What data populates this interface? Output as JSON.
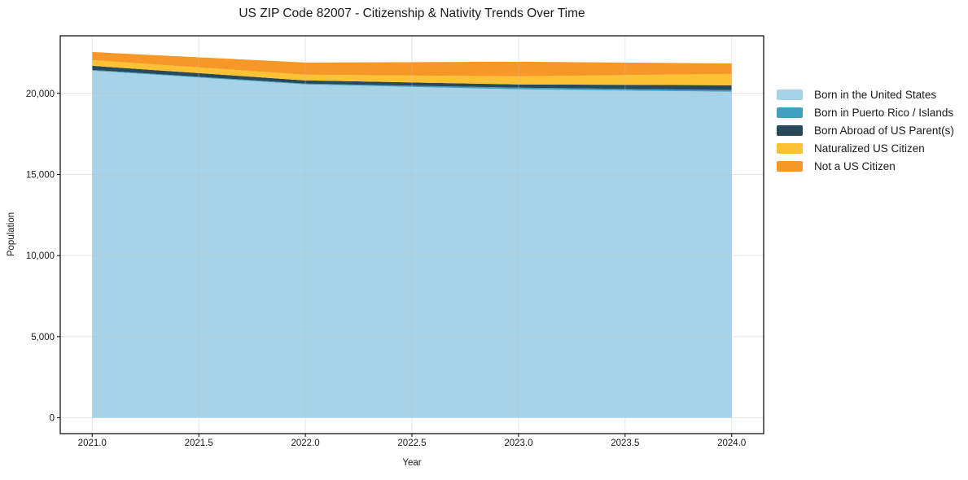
{
  "page": {
    "background": "#ffffff"
  },
  "chart_data": {
    "type": "area",
    "stacked": true,
    "title": "US ZIP Code 82007 - Citizenship & Nativity Trends Over Time",
    "xlabel": "Year",
    "ylabel": "Population",
    "x": [
      2021,
      2022,
      2023,
      2024
    ],
    "series": [
      {
        "name": "Born in the United States",
        "color": "#a6d3e8",
        "values": [
          21400,
          20550,
          20250,
          20100
        ]
      },
      {
        "name": "Born in Puerto Rico / Islands",
        "color": "#3fa0c0",
        "values": [
          50,
          50,
          100,
          100
        ]
      },
      {
        "name": "Born Abroad of US Parent(s)",
        "color": "#27495a",
        "values": [
          250,
          200,
          200,
          300
        ]
      },
      {
        "name": "Naturalized US Citizen",
        "color": "#fcc233",
        "values": [
          350,
          350,
          500,
          700
        ]
      },
      {
        "name": "Not a US Citizen",
        "color": "#f79728",
        "values": [
          500,
          750,
          900,
          650
        ]
      }
    ],
    "xlim": [
      2020.85,
      2024.15
    ],
    "ylim": [
      -980,
      23550
    ],
    "xticks": {
      "values": [
        2021.0,
        2021.5,
        2022.0,
        2022.5,
        2023.0,
        2023.5,
        2024.0
      ],
      "labels": [
        "2021.0",
        "2021.5",
        "2022.0",
        "2022.5",
        "2023.0",
        "2023.5",
        "2024.0"
      ]
    },
    "yticks": {
      "values": [
        0,
        5000,
        10000,
        15000,
        20000
      ],
      "labels": [
        "0",
        "5,000",
        "10,000",
        "15,000",
        "20,000"
      ]
    },
    "grid": true,
    "legend_position": "right",
    "colors": {
      "axis": "#000000",
      "text": "#1a1a1a",
      "grid": "#bfbfbf",
      "plot_background": "#ffffff"
    }
  }
}
